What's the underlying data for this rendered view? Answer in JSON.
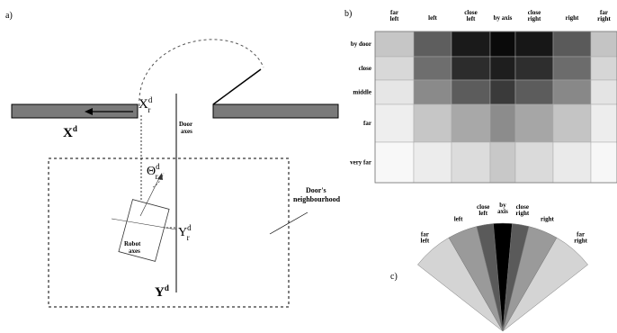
{
  "panel_a": {
    "label": "a)",
    "xd": "X",
    "xd_sup": "d",
    "xrd": "X",
    "xrd_sub": "r",
    "xrd_sup": "d",
    "door_axes_1": "Door",
    "door_axes_2": "axes",
    "theta": "Θ",
    "theta_sub": "r",
    "theta_sup": "d",
    "yrd": "Y",
    "yrd_sub": "r",
    "yrd_sup": "d",
    "robot_axes_1": "Robot",
    "robot_axes_2": "axes",
    "yd": "Y",
    "yd_sup": "d",
    "neigh_1": "Door's",
    "neigh_2": "neighbourhood"
  },
  "panel_b": {
    "label": "b)",
    "columns": [
      "far\nleft",
      "left",
      "close\nleft",
      "by axis",
      "close\nright",
      "right",
      "far\nright"
    ],
    "rows": [
      "by door",
      "close",
      "middle",
      "far",
      "very far"
    ],
    "grayscale": [
      [
        "#c6c6c6",
        "#5e5e5e",
        "#1a1a1a",
        "#0a0a0a",
        "#171717",
        "#5a5a5a",
        "#c4c4c4"
      ],
      [
        "#d8d8d8",
        "#6e6e6e",
        "#2c2c2c",
        "#1e1e1e",
        "#2e2e2e",
        "#6c6c6c",
        "#d6d6d6"
      ],
      [
        "#e6e6e6",
        "#8a8a8a",
        "#5c5c5c",
        "#3a3a3a",
        "#5c5c5c",
        "#888888",
        "#e4e4e4"
      ],
      [
        "#eeeeee",
        "#c6c6c6",
        "#a8a8a8",
        "#8c8c8c",
        "#a6a6a6",
        "#c4c4c4",
        "#ededed"
      ],
      [
        "#f8f8f8",
        "#ececec",
        "#dcdcdc",
        "#c8c8c8",
        "#dadada",
        "#eaeaea",
        "#f7f7f7"
      ]
    ]
  },
  "panel_c": {
    "label": "c)",
    "sectors": [
      {
        "label": "far\nleft",
        "color": "#d4d4d4"
      },
      {
        "label": "left",
        "color": "#9a9a9a"
      },
      {
        "label": "close\nleft",
        "color": "#5a5a5a"
      },
      {
        "label": "by\naxis",
        "color": "#000000"
      },
      {
        "label": "close\nright",
        "color": "#5a5a5a"
      },
      {
        "label": "right",
        "color": "#9a9a9a"
      },
      {
        "label": "far\nright",
        "color": "#d4d4d4"
      }
    ]
  }
}
